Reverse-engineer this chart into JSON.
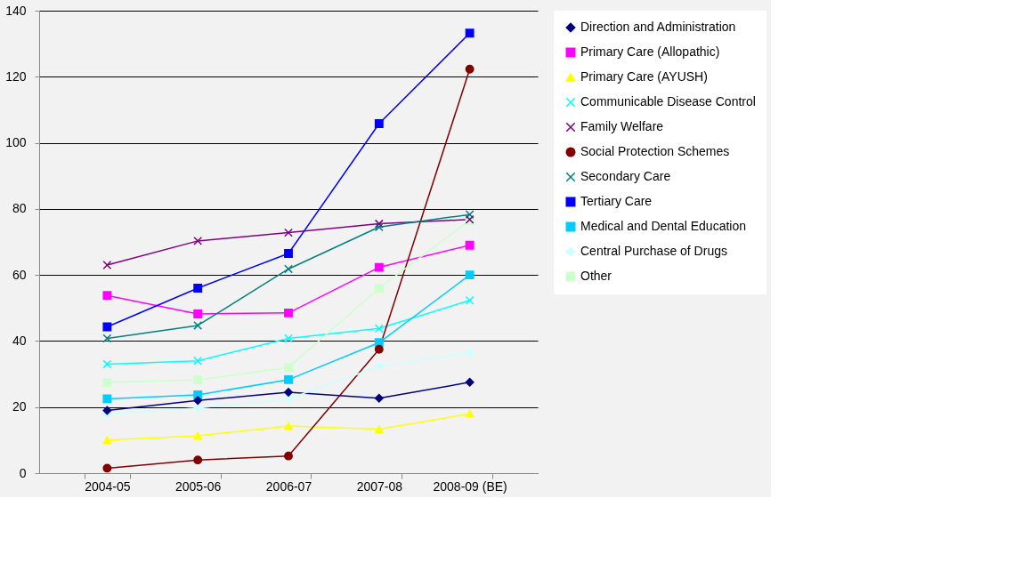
{
  "chart_data": {
    "type": "line",
    "categories": [
      "2004-05",
      "2005-06",
      "2006-07",
      "2007-08",
      "2008-09 (BE)"
    ],
    "ylim": [
      0,
      140
    ],
    "yticks": [
      0,
      20,
      40,
      60,
      80,
      100,
      120,
      140
    ],
    "grid": "y",
    "legend": "right",
    "series": [
      {
        "name": "Direction and Administration",
        "color": "#000080",
        "marker": "diamond",
        "values": [
          19,
          22,
          24.5,
          22.7,
          27.5
        ]
      },
      {
        "name": "Primary Care (Allopathic)",
        "color": "#ff00ff",
        "marker": "square",
        "values": [
          53.8,
          48.2,
          48.5,
          62.3,
          69
        ]
      },
      {
        "name": "Primary Care (AYUSH)",
        "color": "#ffff00",
        "marker": "triangle",
        "values": [
          10,
          11.3,
          14.3,
          13.3,
          18
        ]
      },
      {
        "name": "Communicable Disease Control",
        "color": "#00ffff",
        "marker": "cross",
        "values": [
          33,
          34,
          40.8,
          43.8,
          52.3
        ]
      },
      {
        "name": "Family Welfare",
        "color": "#800080",
        "marker": "cross",
        "values": [
          63,
          70.3,
          72.8,
          75.5,
          76.8
        ]
      },
      {
        "name": "Social Protection Schemes",
        "color": "#800000",
        "marker": "circle",
        "values": [
          1.5,
          4,
          5.2,
          37.5,
          122.3
        ]
      },
      {
        "name": "Secondary Care",
        "color": "#008080",
        "marker": "cross",
        "values": [
          40.8,
          44.7,
          61.8,
          74.5,
          78.3
        ]
      },
      {
        "name": "Tertiary Care",
        "color": "#0000ff",
        "marker": "square",
        "values": [
          44.3,
          56,
          66.5,
          105.8,
          133.2
        ]
      },
      {
        "name": "Medical and Dental Education",
        "color": "#00ccff",
        "marker": "square",
        "values": [
          22.5,
          23.7,
          28.3,
          39.5,
          60
        ]
      },
      {
        "name": "Central Purchase of Drugs",
        "color": "#ccffff",
        "marker": "diamond",
        "values": [
          18,
          19.7,
          22.5,
          32.3,
          36.5
        ]
      },
      {
        "name": "Other",
        "color": "#ccffcc",
        "marker": "square",
        "values": [
          27.5,
          28.2,
          32,
          56,
          76.5
        ]
      }
    ]
  }
}
